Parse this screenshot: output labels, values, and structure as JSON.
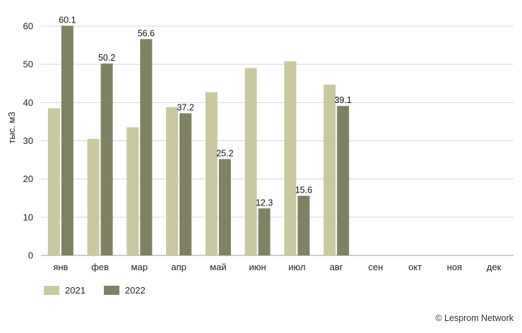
{
  "chart_data": {
    "type": "bar",
    "ylabel": "тыс. м3",
    "xlabel": "",
    "ylim": [
      0,
      60
    ],
    "yticks": [
      0,
      10,
      20,
      30,
      40,
      50,
      60
    ],
    "grid": true,
    "legend_position": "bottom-left",
    "categories": [
      "янв",
      "фев",
      "мар",
      "апр",
      "май",
      "июн",
      "июл",
      "авг",
      "сен",
      "окт",
      "ноя",
      "дек"
    ],
    "series": [
      {
        "name": "2021",
        "color": "#c8c9a0",
        "values": [
          38.5,
          30.5,
          33.5,
          38.8,
          42.7,
          49.0,
          50.8,
          44.7,
          0,
          0,
          0,
          0
        ],
        "labels": [
          null,
          null,
          null,
          null,
          null,
          null,
          null,
          null,
          null,
          null,
          null,
          null
        ]
      },
      {
        "name": "2022",
        "color": "#7e8263",
        "values": [
          60.1,
          50.2,
          56.6,
          37.2,
          25.2,
          12.3,
          15.6,
          39.1,
          0,
          0,
          0,
          0
        ],
        "labels": [
          "60.1",
          "50.2",
          "56.6",
          "37.2",
          "25.2",
          "12.3",
          "15.6",
          "39.1",
          null,
          null,
          null,
          null
        ]
      }
    ]
  },
  "credit": "© Lesprom Network"
}
